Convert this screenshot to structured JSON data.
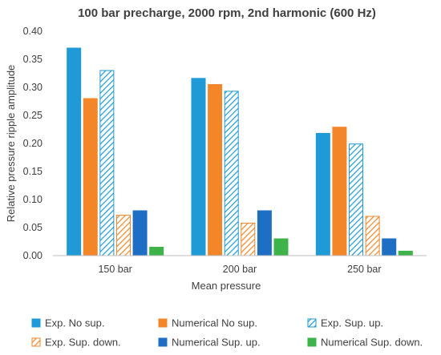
{
  "chart_data": {
    "type": "bar",
    "title": "100 bar precharge, 2000 rpm, 2nd harmonic (600 Hz)",
    "xlabel": "Mean pressure",
    "ylabel": "Relative pressure ripple amplitude",
    "categories": [
      "150 bar",
      "200 bar",
      "250 bar"
    ],
    "ylim": [
      0,
      0.4
    ],
    "yticks": [
      "0.00",
      "0.05",
      "0.10",
      "0.15",
      "0.20",
      "0.25",
      "0.30",
      "0.35",
      "0.40"
    ],
    "grid": false,
    "legend_position": "bottom",
    "series": [
      {
        "name": "Exp. No sup.",
        "values": [
          0.37,
          0.316,
          0.218
        ],
        "color": "#1f9ad6",
        "pattern": "solid"
      },
      {
        "name": "Numerical No sup.",
        "values": [
          0.28,
          0.305,
          0.229
        ],
        "color": "#f4862a",
        "pattern": "solid"
      },
      {
        "name": "Exp. Sup. up.",
        "values": [
          0.33,
          0.293,
          0.199
        ],
        "color": "#1f9ad6",
        "pattern": "hatched"
      },
      {
        "name": "Exp. Sup. down.",
        "values": [
          0.072,
          0.058,
          0.07
        ],
        "color": "#f4862a",
        "pattern": "hatched"
      },
      {
        "name": "Numerical Sup. up.",
        "values": [
          0.08,
          0.08,
          0.03
        ],
        "color": "#1e6fc4",
        "pattern": "solid"
      },
      {
        "name": "Numerical Sup. down.",
        "values": [
          0.015,
          0.03,
          0.008
        ],
        "color": "#3eb349",
        "pattern": "solid"
      }
    ]
  }
}
